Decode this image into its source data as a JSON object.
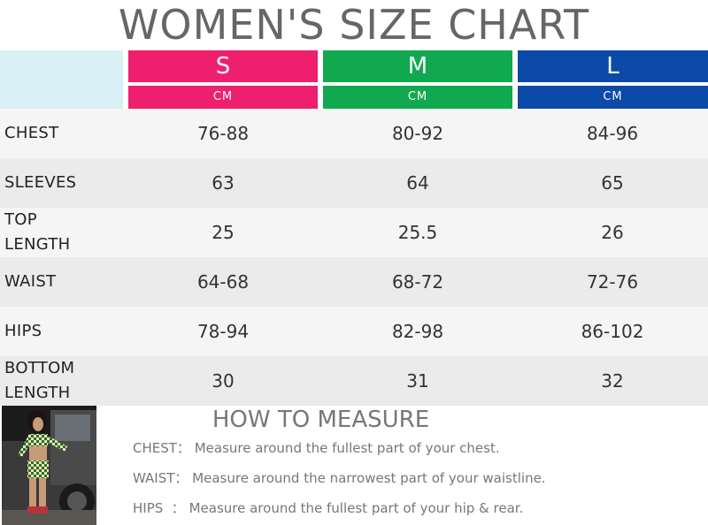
{
  "title": "WOMEN'S SIZE CHART",
  "colors": {
    "S": "#ef1f6f",
    "M": "#10a94f",
    "L": "#0b4aa8",
    "corner": "#daf0f7",
    "row_light": "#f5f5f5",
    "row_dark": "#ebebeb"
  },
  "sizes": [
    {
      "label": "S",
      "unit": "CM"
    },
    {
      "label": "M",
      "unit": "CM"
    },
    {
      "label": "L",
      "unit": "CM"
    }
  ],
  "rows": [
    {
      "label": "CHEST",
      "values": [
        "76-88",
        "80-92",
        "84-96"
      ]
    },
    {
      "label": "SLEEVES",
      "values": [
        "63",
        "64",
        "65"
      ]
    },
    {
      "label": "TOP LENGTH",
      "values": [
        "25",
        "25.5",
        "26"
      ]
    },
    {
      "label": "WAIST",
      "values": [
        "64-68",
        "68-72",
        "72-76"
      ]
    },
    {
      "label": "HIPS",
      "values": [
        "78-94",
        "82-98",
        "86-102"
      ]
    },
    {
      "label": "BOTTOM LENGTH",
      "values": [
        "30",
        "31",
        "32"
      ]
    }
  ],
  "how_to": {
    "title": "HOW TO MEASURE",
    "items": [
      {
        "key": "CHEST：",
        "text": "Measure around the fullest part of your chest."
      },
      {
        "key": "WAIST：",
        "text": "Measure around the narrowest part of your waistline."
      },
      {
        "key": "HIPS  ：",
        "text": "Measure around the fullest part of your hip & rear."
      }
    ]
  },
  "photo": {
    "icon": "model-photo"
  }
}
